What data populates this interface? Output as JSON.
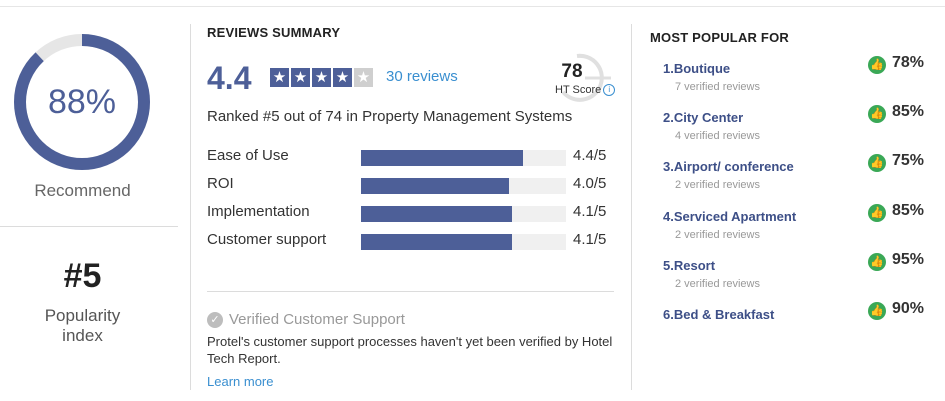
{
  "summary": {
    "recommend_pct": "88%",
    "recommend_value": 0.88,
    "recommend_label": "Recommend",
    "popularity_rank": "#5",
    "popularity_label_line1": "Popularity",
    "popularity_label_line2": "index"
  },
  "reviews": {
    "section_title": "REVIEWS SUMMARY",
    "rating": "4.4",
    "stars_filled": 4,
    "stars_total": 5,
    "reviews_link": "30 reviews",
    "ht_score": "78",
    "ht_label": "HT Score",
    "ranked_text": "Ranked #5 out of 74 in Property Management Systems",
    "criteria": [
      {
        "label": "Ease of Use",
        "value": "4.4/5",
        "score": 4.4
      },
      {
        "label": "ROI",
        "value": "4.0/5",
        "score": 4.0
      },
      {
        "label": "Implementation",
        "value": "4.1/5",
        "score": 4.1
      },
      {
        "label": "Customer support",
        "value": "4.1/5",
        "score": 4.1
      }
    ],
    "verified_title": "Verified Customer Support",
    "verified_desc": "Protel's customer support processes haven't yet been verified by Hotel Tech Report.",
    "learn_more": "Learn more"
  },
  "popular": {
    "section_title": "MOST POPULAR FOR",
    "items": [
      {
        "name": "1.Boutique",
        "sub": "7 verified reviews",
        "pct": "78%"
      },
      {
        "name": "2.City Center",
        "sub": "4 verified reviews",
        "pct": "85%"
      },
      {
        "name": "3.Airport/ conference",
        "sub": "2 verified reviews",
        "pct": "75%"
      },
      {
        "name": "4.Serviced Apartment",
        "sub": "2 verified reviews",
        "pct": "85%"
      },
      {
        "name": "5.Resort",
        "sub": "2 verified reviews",
        "pct": "95%"
      },
      {
        "name": "6.Bed & Breakfast",
        "sub": "",
        "pct": "90%"
      }
    ]
  },
  "colors": {
    "accent": "#4d5f98",
    "star_empty": "#cfcfcf",
    "bar_track": "#f0f0f0",
    "thumb": "#3aa856",
    "link": "#3a8fd0"
  }
}
